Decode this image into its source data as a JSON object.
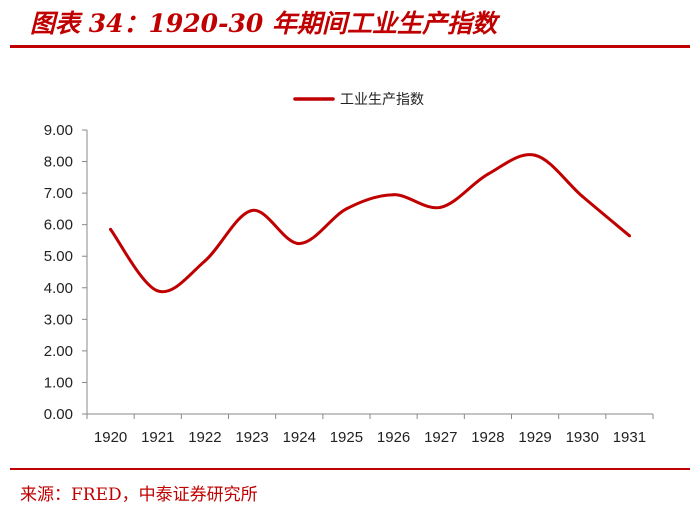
{
  "header": {
    "title": "图表 34：1920-30 年期间工业生产指数"
  },
  "footer": {
    "source": "来源：FRED，中泰证券研究所"
  },
  "colors": {
    "accent": "#c00000",
    "series": "#c00000",
    "axis": "#888888"
  },
  "chart_data": {
    "type": "line",
    "title": "",
    "xlabel": "",
    "ylabel": "",
    "categories": [
      "1920",
      "1921",
      "1922",
      "1923",
      "1924",
      "1925",
      "1926",
      "1927",
      "1928",
      "1929",
      "1930",
      "1931"
    ],
    "series": [
      {
        "name": "工业生产指数",
        "values": [
          5.85,
          3.9,
          4.85,
          6.45,
          5.4,
          6.5,
          6.95,
          6.55,
          7.6,
          8.2,
          6.9,
          5.65
        ]
      }
    ],
    "ylim": [
      0,
      9
    ],
    "yticks": [
      "0.00",
      "1.00",
      "2.00",
      "3.00",
      "4.00",
      "5.00",
      "6.00",
      "7.00",
      "8.00",
      "9.00"
    ],
    "legend": "top-center",
    "grid": false,
    "smooth": true
  }
}
